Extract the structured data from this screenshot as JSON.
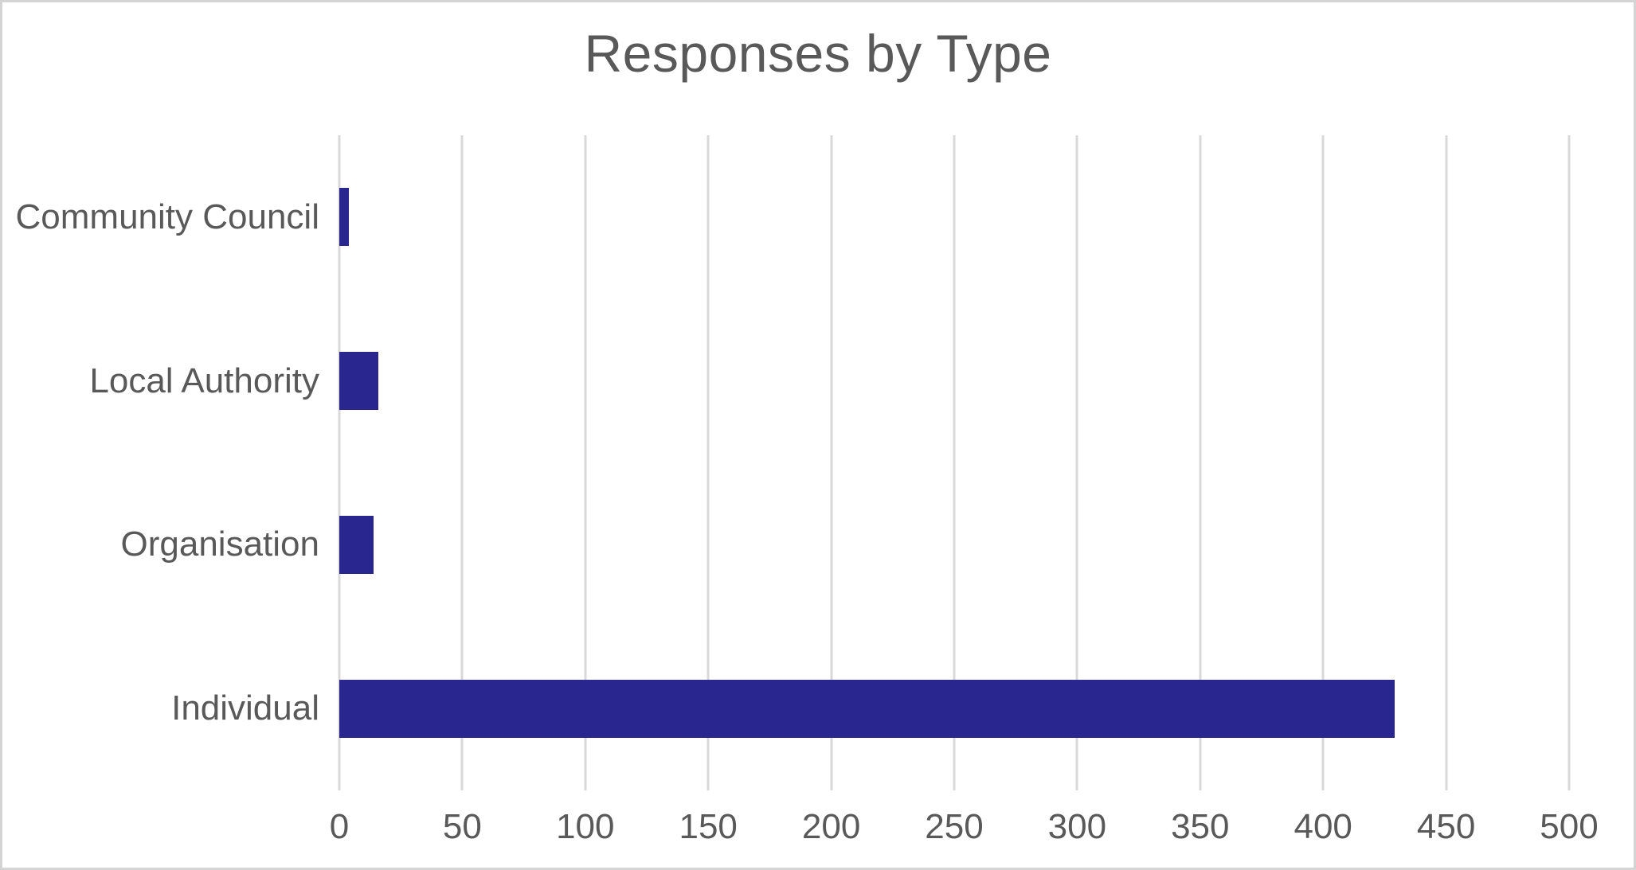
{
  "title": "Responses by Type",
  "colors": {
    "bar": "#292690",
    "gridline": "#d9d9d9",
    "text": "#595959",
    "frame_border": "#d4d4d4",
    "background": "#ffffff"
  },
  "chart_data": {
    "type": "bar",
    "orientation": "horizontal",
    "title": "Responses by Type",
    "categories": [
      "Community Council",
      "Local Authority",
      "Organisation",
      "Individual"
    ],
    "values": [
      4,
      16,
      14,
      429
    ],
    "xlabel": "",
    "ylabel": "",
    "xlim": [
      0,
      500
    ],
    "x_ticks": [
      0,
      50,
      100,
      150,
      200,
      250,
      300,
      350,
      400,
      450,
      500
    ],
    "grid": "vertical-gridlines-on",
    "legend": "none",
    "bar_color": "#292690"
  }
}
